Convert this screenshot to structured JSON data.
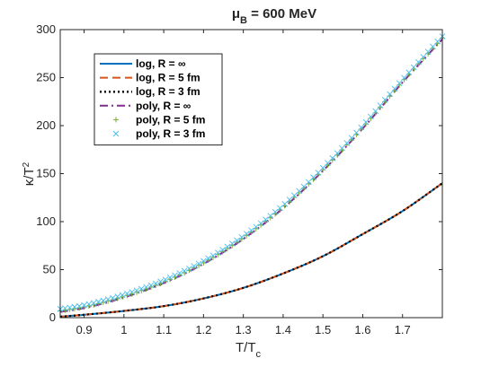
{
  "chart_data": {
    "type": "line",
    "title": {
      "symbol": "μ",
      "subscript": "B",
      "rest": " = 600 MeV"
    },
    "xlabel": {
      "main": "T/T",
      "subscript": "c"
    },
    "ylabel": {
      "main": "κ/T",
      "superscript": "2"
    },
    "xlim": [
      0.84,
      1.8
    ],
    "ylim": [
      0,
      300
    ],
    "xticks": [
      0.9,
      1,
      1.1,
      1.2,
      1.3,
      1.4,
      1.5,
      1.6,
      1.7
    ],
    "xtick_labels": [
      "0.9",
      "1",
      "1.1",
      "1.2",
      "1.3",
      "1.4",
      "1.5",
      "1.6",
      "1.7"
    ],
    "yticks": [
      0,
      50,
      100,
      150,
      200,
      250,
      300
    ],
    "ytick_labels": [
      "0",
      "50",
      "100",
      "150",
      "200",
      "250",
      "300"
    ],
    "grid": false,
    "legend_placement": "top-left",
    "x": [
      0.84,
      0.9,
      1.0,
      1.1,
      1.2,
      1.3,
      1.4,
      1.5,
      1.6,
      1.7,
      1.8
    ],
    "series": [
      {
        "name": "log, R = ∞",
        "color": "#0072BD",
        "style": "solid",
        "values": [
          1,
          3,
          7,
          12,
          20,
          31,
          46,
          64,
          87,
          111,
          140
        ]
      },
      {
        "name": "log, R = 5 fm",
        "color": "#D95319",
        "style": "dashed",
        "values": [
          1,
          3,
          7,
          12,
          20,
          31,
          46,
          64,
          87,
          111,
          140
        ]
      },
      {
        "name": "log, R = 3 fm",
        "color": "#000000",
        "style": "dotted",
        "values": [
          1,
          3,
          7,
          12,
          20,
          31,
          46,
          64,
          87,
          111,
          140
        ]
      },
      {
        "name": "poly, R = ∞",
        "color": "#7E2F8E",
        "style": "dashdot",
        "values": [
          6,
          10,
          21,
          36,
          56,
          82,
          114,
          153,
          197,
          245,
          290
        ]
      },
      {
        "name": "poly, R = 5 fm",
        "color": "#77AC30",
        "style": "plus",
        "values": [
          7,
          11,
          22,
          37,
          57,
          83,
          115,
          154,
          198,
          246,
          291
        ]
      },
      {
        "name": "poly, R = 3 fm",
        "color": "#4DBEEE",
        "style": "cross",
        "values": [
          9,
          13,
          24,
          39,
          59,
          85,
          117,
          156,
          200,
          248,
          293
        ]
      }
    ]
  }
}
